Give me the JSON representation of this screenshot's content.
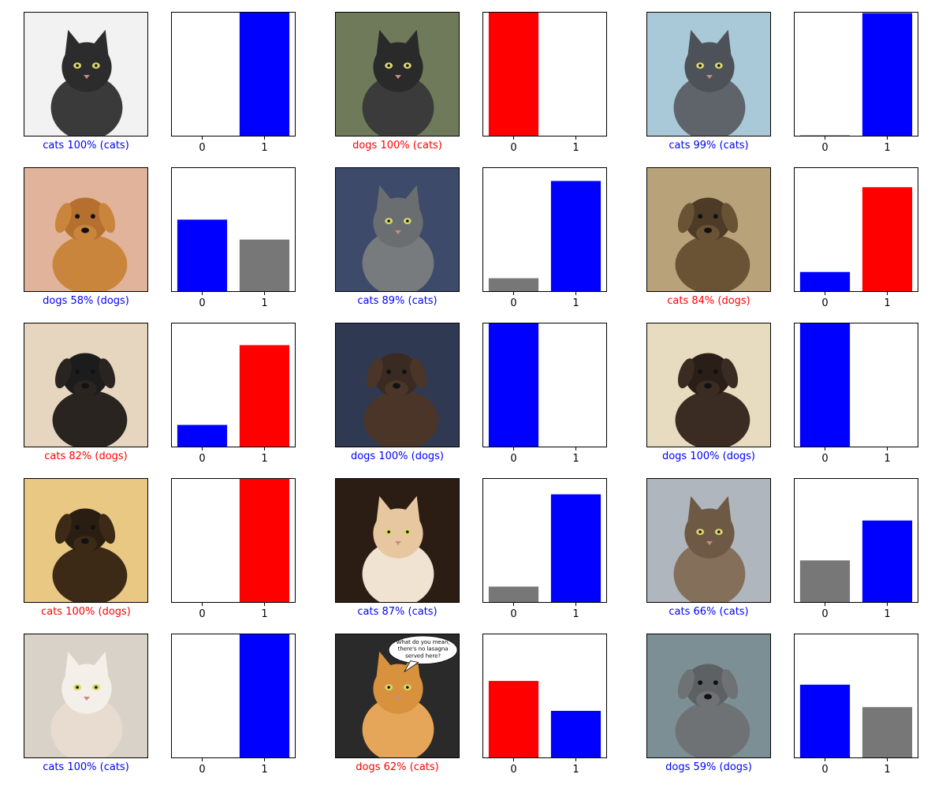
{
  "colors": {
    "correct": "#0000ff",
    "wrong": "#ff0000",
    "other": "#777777"
  },
  "chart_data": [
    {
      "type": "bar",
      "title": "",
      "categories": [
        "0",
        "1"
      ],
      "values": [
        0.0,
        1.0
      ],
      "bar_colors": [
        "other",
        "correct"
      ],
      "ylim": [
        0,
        1
      ],
      "image": {
        "subject": "cat",
        "palette": [
          "#f2f2f2",
          "#2c2c2c",
          "#3a3a3a"
        ]
      },
      "caption": {
        "text": "cats 100% (cats)",
        "status": "correct"
      }
    },
    {
      "type": "bar",
      "title": "",
      "categories": [
        "0",
        "1"
      ],
      "values": [
        1.0,
        0.002
      ],
      "bar_colors": [
        "wrong",
        "correct"
      ],
      "ylim": [
        0,
        1
      ],
      "image": {
        "subject": "cat",
        "palette": [
          "#6f7a5a",
          "#2a2a2a",
          "#3b3b3b"
        ]
      },
      "caption": {
        "text": "dogs 100% (cats)",
        "status": "wrong"
      }
    },
    {
      "type": "bar",
      "title": "",
      "categories": [
        "0",
        "1"
      ],
      "values": [
        0.01,
        0.99
      ],
      "bar_colors": [
        "other",
        "correct"
      ],
      "ylim": [
        0,
        1
      ],
      "image": {
        "subject": "cat",
        "palette": [
          "#a9c8d8",
          "#4c5257",
          "#5e6469"
        ]
      },
      "caption": {
        "text": "cats 99% (cats)",
        "status": "correct"
      }
    },
    {
      "type": "bar",
      "title": "",
      "categories": [
        "0",
        "1"
      ],
      "values": [
        0.58,
        0.42
      ],
      "bar_colors": [
        "correct",
        "other"
      ],
      "ylim": [
        0,
        1
      ],
      "image": {
        "subject": "dog",
        "palette": [
          "#e0b39a",
          "#b5702f",
          "#c9853c"
        ]
      },
      "caption": {
        "text": "dogs 58% (dogs)",
        "status": "correct"
      }
    },
    {
      "type": "bar",
      "title": "",
      "categories": [
        "0",
        "1"
      ],
      "values": [
        0.11,
        0.89
      ],
      "bar_colors": [
        "other",
        "correct"
      ],
      "ylim": [
        0,
        1
      ],
      "image": {
        "subject": "cat",
        "palette": [
          "#3d4a6a",
          "#6b6e70",
          "#787b7d"
        ]
      },
      "caption": {
        "text": "cats 89% (cats)",
        "status": "correct"
      }
    },
    {
      "type": "bar",
      "title": "",
      "categories": [
        "0",
        "1"
      ],
      "values": [
        0.16,
        0.84
      ],
      "bar_colors": [
        "correct",
        "wrong"
      ],
      "ylim": [
        0,
        1
      ],
      "image": {
        "subject": "dog",
        "palette": [
          "#b8a27a",
          "#4d3b28",
          "#6a5234"
        ]
      },
      "caption": {
        "text": "cats 84% (dogs)",
        "status": "wrong"
      }
    },
    {
      "type": "bar",
      "title": "",
      "categories": [
        "0",
        "1"
      ],
      "values": [
        0.18,
        0.82
      ],
      "bar_colors": [
        "correct",
        "wrong"
      ],
      "ylim": [
        0,
        1
      ],
      "image": {
        "subject": "dog",
        "palette": [
          "#e6d6bf",
          "#1c1c1c",
          "#2a2420"
        ]
      },
      "caption": {
        "text": "cats 82% (dogs)",
        "status": "wrong"
      }
    },
    {
      "type": "bar",
      "title": "",
      "categories": [
        "0",
        "1"
      ],
      "values": [
        1.0,
        0.0
      ],
      "bar_colors": [
        "correct",
        "other"
      ],
      "ylim": [
        0,
        1
      ],
      "image": {
        "subject": "dog",
        "palette": [
          "#2f3a52",
          "#3a2a22",
          "#4a3528"
        ]
      },
      "caption": {
        "text": "dogs 100% (dogs)",
        "status": "correct"
      }
    },
    {
      "type": "bar",
      "title": "",
      "categories": [
        "0",
        "1"
      ],
      "values": [
        1.0,
        0.0
      ],
      "bar_colors": [
        "correct",
        "other"
      ],
      "ylim": [
        0,
        1
      ],
      "image": {
        "subject": "dog",
        "palette": [
          "#e8dcc0",
          "#2a1f18",
          "#3a2c22"
        ]
      },
      "caption": {
        "text": "dogs 100% (dogs)",
        "status": "correct"
      }
    },
    {
      "type": "bar",
      "title": "",
      "categories": [
        "0",
        "1"
      ],
      "values": [
        0.0,
        1.0
      ],
      "bar_colors": [
        "other",
        "wrong"
      ],
      "ylim": [
        0,
        1
      ],
      "image": {
        "subject": "dog",
        "palette": [
          "#e8c883",
          "#2a1e12",
          "#3c2a16"
        ]
      },
      "caption": {
        "text": "cats 100% (dogs)",
        "status": "wrong"
      }
    },
    {
      "type": "bar",
      "title": "",
      "categories": [
        "0",
        "1"
      ],
      "values": [
        0.13,
        0.87
      ],
      "bar_colors": [
        "other",
        "correct"
      ],
      "ylim": [
        0,
        1
      ],
      "image": {
        "subject": "cat",
        "palette": [
          "#2b1d14",
          "#e7c7a0",
          "#f0e3d2"
        ]
      },
      "caption": {
        "text": "cats 87% (cats)",
        "status": "correct"
      }
    },
    {
      "type": "bar",
      "title": "",
      "categories": [
        "0",
        "1"
      ],
      "values": [
        0.34,
        0.66
      ],
      "bar_colors": [
        "other",
        "correct"
      ],
      "ylim": [
        0,
        1
      ],
      "image": {
        "subject": "cat",
        "palette": [
          "#b0b6bd",
          "#6e5a44",
          "#84705a"
        ]
      },
      "caption": {
        "text": "cats 66% (cats)",
        "status": "correct"
      }
    },
    {
      "type": "bar",
      "title": "",
      "categories": [
        "0",
        "1"
      ],
      "values": [
        0.0,
        1.0
      ],
      "bar_colors": [
        "other",
        "correct"
      ],
      "ylim": [
        0,
        1
      ],
      "image": {
        "subject": "cat",
        "palette": [
          "#d8d2c8",
          "#f4efe8",
          "#e7dccf"
        ]
      },
      "caption": {
        "text": "cats 100% (cats)",
        "status": "correct"
      }
    },
    {
      "type": "bar",
      "title": "",
      "categories": [
        "0",
        "1"
      ],
      "values": [
        0.62,
        0.38
      ],
      "bar_colors": [
        "wrong",
        "correct"
      ],
      "ylim": [
        0,
        1
      ],
      "image": {
        "subject": "cat",
        "palette": [
          "#2a2a2a",
          "#d8923e",
          "#e6a65a"
        ],
        "speech_bubble": [
          "What do you mean,",
          "there's no lasagna",
          "served here?"
        ]
      },
      "caption": {
        "text": "dogs 62% (cats)",
        "status": "wrong"
      }
    },
    {
      "type": "bar",
      "title": "",
      "categories": [
        "0",
        "1"
      ],
      "values": [
        0.59,
        0.41
      ],
      "bar_colors": [
        "correct",
        "other"
      ],
      "ylim": [
        0,
        1
      ],
      "image": {
        "subject": "dog",
        "palette": [
          "#7c8f95",
          "#5d6163",
          "#6e7275"
        ]
      },
      "caption": {
        "text": "dogs 59% (dogs)",
        "status": "correct"
      }
    }
  ]
}
